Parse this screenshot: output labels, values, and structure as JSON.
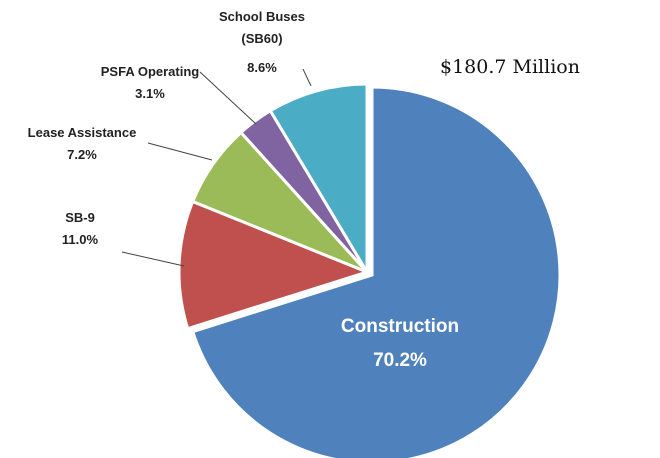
{
  "chart_data": {
    "type": "pie",
    "subtitle": "$180.7 Million",
    "categories": [
      "Construction",
      "SB-9",
      "Lease Assistance",
      "PSFA Operating",
      "School Buses (SB60)"
    ],
    "values": [
      70.2,
      11.0,
      7.2,
      3.1,
      8.6
    ],
    "value_labels": [
      "70.2%",
      "11.0%",
      "7.2%",
      "3.1%",
      "8.6%"
    ],
    "colors": [
      "#4f81bd",
      "#c0504d",
      "#9bbb59",
      "#8064a2",
      "#4bacc6"
    ]
  }
}
